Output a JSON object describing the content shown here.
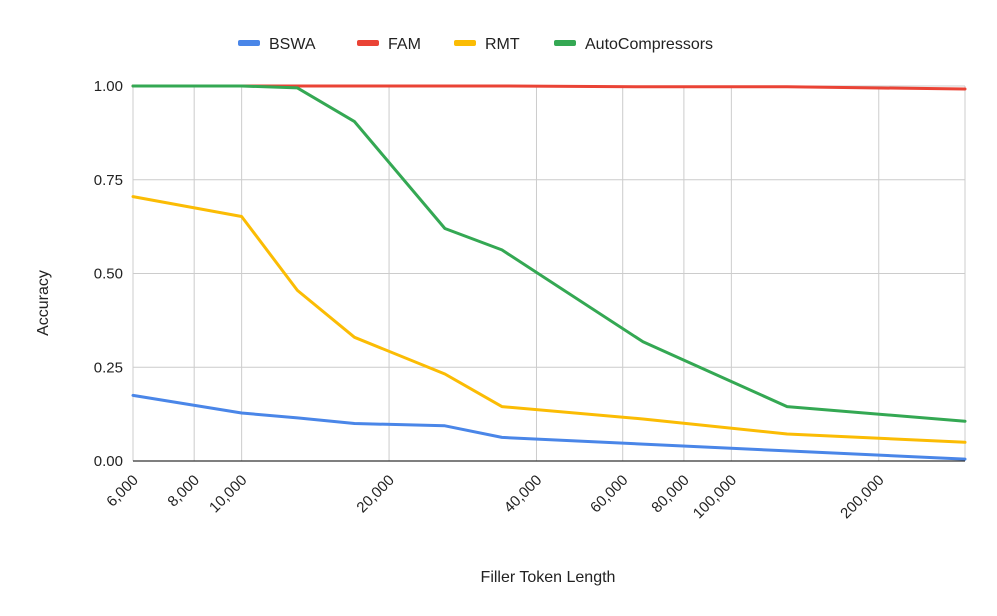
{
  "chart_data": {
    "type": "line",
    "title": "",
    "xlabel": "Filler Token Length",
    "ylabel": "Accuracy",
    "x_scale": "log",
    "xlim": [
      6000,
      300000
    ],
    "ylim": [
      0,
      1
    ],
    "grid": true,
    "legend_position": "top",
    "x_ticks": [
      6000,
      8000,
      10000,
      20000,
      40000,
      60000,
      80000,
      100000,
      200000
    ],
    "x_tick_labels": [
      "6,000",
      "8,000",
      "10,000",
      "20,000",
      "40,000",
      "60,000",
      "80,000",
      "100,000",
      "200,000"
    ],
    "y_ticks": [
      0,
      0.25,
      0.5,
      0.75,
      1
    ],
    "y_tick_labels": [
      "0.00",
      "0.25",
      "0.50",
      "0.75",
      "1.00"
    ],
    "x": [
      6000,
      10000,
      13000,
      17000,
      26000,
      34000,
      66000,
      130000,
      300000
    ],
    "series": [
      {
        "name": "BSWA",
        "color": "#4a86e8",
        "values": [
          0.175,
          0.128,
          0.115,
          0.1,
          0.094,
          0.063,
          0.045,
          0.027,
          0.005
        ]
      },
      {
        "name": "FAM",
        "color": "#ea4335",
        "values": [
          1.0,
          1.0,
          1.0,
          1.0,
          1.0,
          1.0,
          0.998,
          0.998,
          0.992
        ]
      },
      {
        "name": "RMT",
        "color": "#fbbc04",
        "values": [
          0.705,
          0.652,
          0.455,
          0.33,
          0.232,
          0.145,
          0.112,
          0.072,
          0.05
        ]
      },
      {
        "name": "AutoCompressors",
        "color": "#34a853",
        "values": [
          1.0,
          1.0,
          0.995,
          0.905,
          0.62,
          0.563,
          0.318,
          0.145,
          0.106
        ]
      }
    ]
  }
}
